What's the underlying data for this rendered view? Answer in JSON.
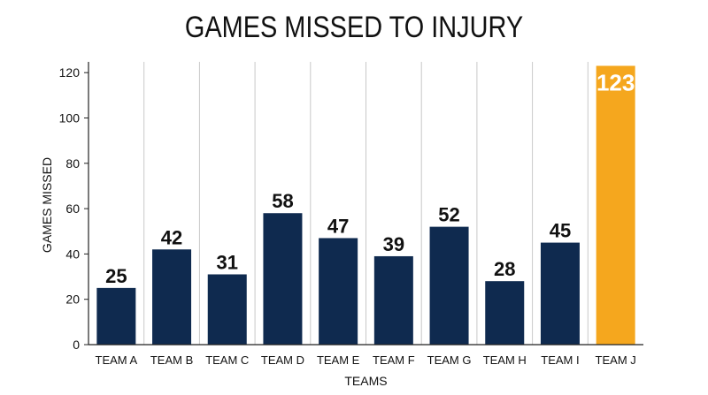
{
  "chart_data": {
    "type": "bar",
    "title": "GAMES MISSED TO INJURY",
    "xlabel": "TEAMS",
    "ylabel": "GAMES MISSED",
    "categories": [
      "TEAM A",
      "TEAM B",
      "TEAM C",
      "TEAM D",
      "TEAM E",
      "TEAM F",
      "TEAM G",
      "TEAM H",
      "TEAM I",
      "TEAM J"
    ],
    "values": [
      25,
      42,
      31,
      58,
      47,
      39,
      52,
      28,
      45,
      123
    ],
    "data_labels": [
      "25",
      "42",
      "31",
      "58",
      "47",
      "39",
      "52",
      "28",
      "45",
      "123"
    ],
    "y_ticks": [
      0,
      20,
      40,
      60,
      80,
      100,
      120
    ],
    "y_tick_labels": [
      "0",
      "20",
      "40",
      "60",
      "80",
      "100",
      "120"
    ],
    "ylim": [
      0,
      125
    ],
    "grid": "vertical separators between categories",
    "legend": "none",
    "colors": {
      "bar": "#0f2a4f",
      "highlight_bar": "#f5a71e",
      "highlight_label": "#ffffff",
      "separator": "#c8c8c8",
      "axis": "#222222"
    },
    "highlight_index": 9
  }
}
